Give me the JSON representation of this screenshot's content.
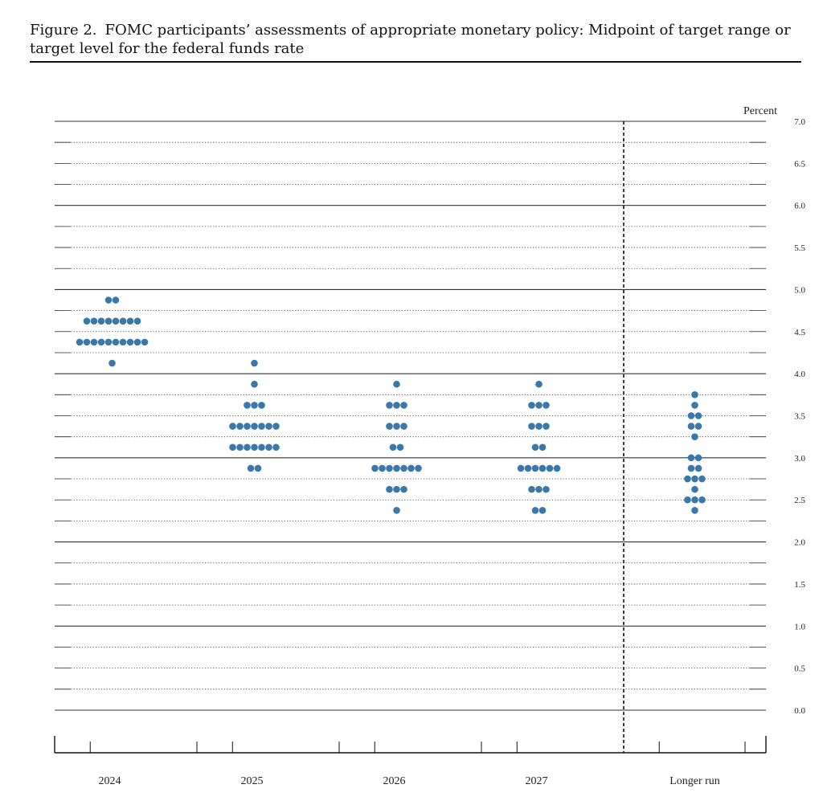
{
  "figure": {
    "label": "Figure 2.",
    "title": "FOMC participants’ assessments of appropriate monetary policy: Midpoint of target range or target level for the federal funds rate"
  },
  "colors": {
    "dot": "#3a78aa",
    "line": "#333333"
  },
  "chart_data": {
    "type": "scatter",
    "subtype": "dot-plot",
    "ylabel": "Percent",
    "ylim": [
      0.0,
      7.0
    ],
    "yticks": [
      "0.0",
      "0.5",
      "1.0",
      "1.5",
      "2.0",
      "2.5",
      "3.0",
      "3.5",
      "4.0",
      "4.5",
      "5.0",
      "5.5",
      "6.0",
      "6.5",
      "7.0"
    ],
    "grid": "solid at whole and half percents, dotted at quarter points",
    "categories": [
      "2024",
      "2025",
      "2026",
      "2027",
      "Longer run"
    ],
    "separator_after": "2027",
    "dots": [
      {
        "category": "2024",
        "points": [
          {
            "y": 4.875,
            "count": 2
          },
          {
            "y": 4.625,
            "count": 8
          },
          {
            "y": 4.375,
            "count": 10
          },
          {
            "y": 4.125,
            "count": 1
          }
        ]
      },
      {
        "category": "2025",
        "points": [
          {
            "y": 4.125,
            "count": 1
          },
          {
            "y": 3.875,
            "count": 1
          },
          {
            "y": 3.625,
            "count": 3
          },
          {
            "y": 3.375,
            "count": 7
          },
          {
            "y": 3.125,
            "count": 7
          },
          {
            "y": 2.875,
            "count": 2
          }
        ]
      },
      {
        "category": "2026",
        "points": [
          {
            "y": 3.875,
            "count": 1
          },
          {
            "y": 3.625,
            "count": 3
          },
          {
            "y": 3.375,
            "count": 3
          },
          {
            "y": 3.125,
            "count": 2
          },
          {
            "y": 2.875,
            "count": 7
          },
          {
            "y": 2.625,
            "count": 3
          },
          {
            "y": 2.375,
            "count": 1
          }
        ]
      },
      {
        "category": "2027",
        "points": [
          {
            "y": 3.875,
            "count": 1
          },
          {
            "y": 3.625,
            "count": 3
          },
          {
            "y": 3.375,
            "count": 3
          },
          {
            "y": 3.125,
            "count": 2
          },
          {
            "y": 2.875,
            "count": 6
          },
          {
            "y": 2.625,
            "count": 3
          },
          {
            "y": 2.375,
            "count": 2
          }
        ]
      },
      {
        "category": "Longer run",
        "points": [
          {
            "y": 3.75,
            "count": 1
          },
          {
            "y": 3.625,
            "count": 1
          },
          {
            "y": 3.5,
            "count": 2
          },
          {
            "y": 3.375,
            "count": 2
          },
          {
            "y": 3.25,
            "count": 1
          },
          {
            "y": 3.0,
            "count": 2
          },
          {
            "y": 2.875,
            "count": 2
          },
          {
            "y": 2.75,
            "count": 3
          },
          {
            "y": 2.625,
            "count": 1
          },
          {
            "y": 2.5,
            "count": 3
          },
          {
            "y": 2.375,
            "count": 1
          }
        ]
      }
    ]
  }
}
